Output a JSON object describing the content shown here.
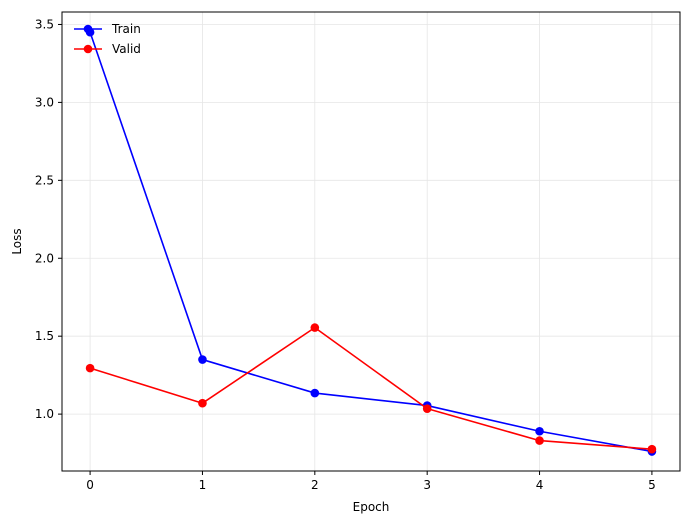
{
  "chart_data": {
    "type": "line",
    "title": "",
    "xlabel": "Epoch",
    "ylabel": "Loss",
    "x": [
      0,
      1,
      2,
      3,
      4,
      5
    ],
    "xlim": [
      -0.25,
      5.25
    ],
    "ylim": [
      0.635,
      3.58
    ],
    "xticks": [
      0,
      1,
      2,
      3,
      4,
      5
    ],
    "yticks": [
      1.0,
      1.5,
      2.0,
      2.5,
      3.0,
      3.5
    ],
    "ytick_labels": [
      "1.0",
      "1.5",
      "2.0",
      "2.5",
      "3.0",
      "3.5"
    ],
    "grid": true,
    "legend": "upper-left",
    "series": [
      {
        "name": "Train",
        "color": "#0000ff",
        "values": [
          3.45,
          1.35,
          1.135,
          1.055,
          0.89,
          0.76
        ]
      },
      {
        "name": "Valid",
        "color": "#ff0000",
        "values": [
          1.295,
          1.07,
          1.555,
          1.035,
          0.83,
          0.775
        ]
      }
    ]
  }
}
